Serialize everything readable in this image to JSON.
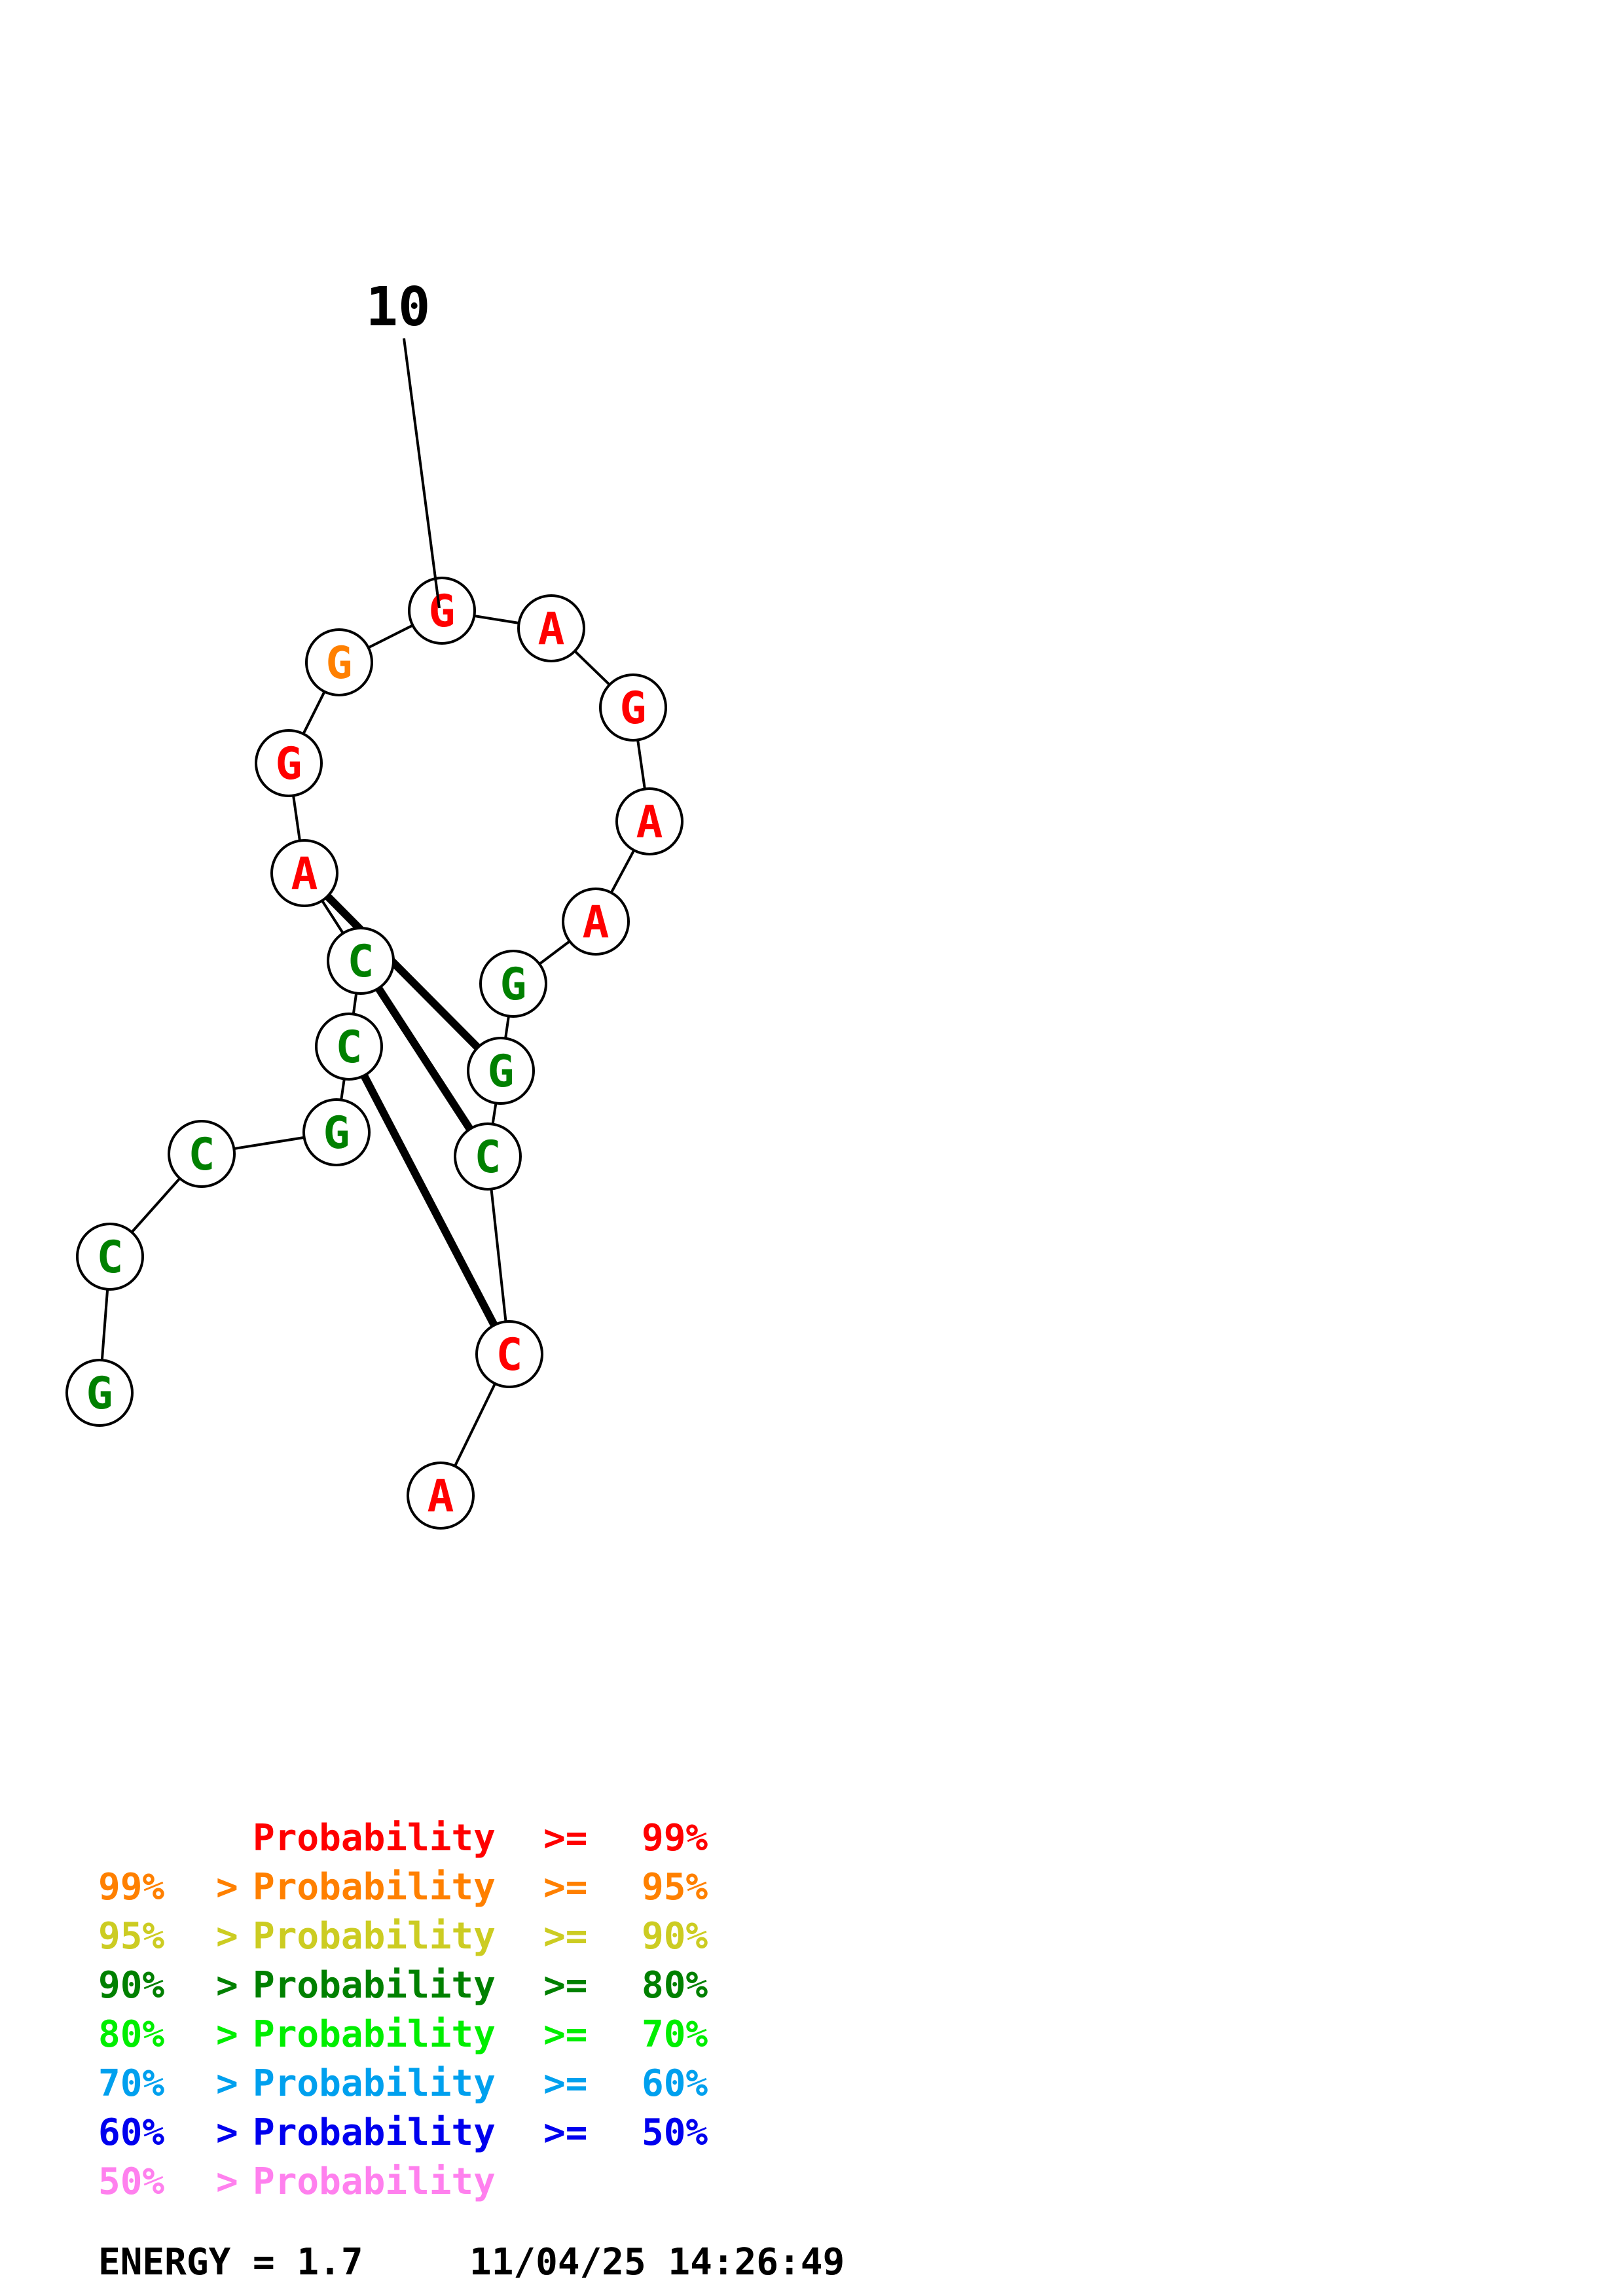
{
  "colors": {
    "red": "#ff0000",
    "orange": "#ff8000",
    "yellow": "#cccc22",
    "dark_green": "#008000",
    "bright_green": "#00ee00",
    "sky_blue": "#00a0ee",
    "blue": "#0000ee",
    "pink": "#ff80ee",
    "black": "#000000"
  },
  "structure": {
    "position_label": "10",
    "nucleotides": [
      {
        "letter": "G",
        "color": "dark_green"
      },
      {
        "letter": "C",
        "color": "dark_green"
      },
      {
        "letter": "C",
        "color": "dark_green"
      },
      {
        "letter": "G",
        "color": "dark_green"
      },
      {
        "letter": "C",
        "color": "dark_green"
      },
      {
        "letter": "C",
        "color": "dark_green"
      },
      {
        "letter": "A",
        "color": "red"
      },
      {
        "letter": "G",
        "color": "red"
      },
      {
        "letter": "G",
        "color": "orange"
      },
      {
        "letter": "G",
        "color": "red"
      },
      {
        "letter": "A",
        "color": "red"
      },
      {
        "letter": "G",
        "color": "red"
      },
      {
        "letter": "A",
        "color": "red"
      },
      {
        "letter": "A",
        "color": "red"
      },
      {
        "letter": "G",
        "color": "dark_green"
      },
      {
        "letter": "G",
        "color": "dark_green"
      },
      {
        "letter": "C",
        "color": "dark_green"
      },
      {
        "letter": "C",
        "color": "red"
      },
      {
        "letter": "A",
        "color": "red"
      }
    ],
    "base_pairs": [
      [
        6,
        15
      ],
      [
        5,
        16
      ],
      [
        4,
        17
      ]
    ]
  },
  "legend": [
    {
      "prefix": "",
      "gt": "",
      "label": "Probability",
      "ge": ">=",
      "pct": "99%",
      "color": "red"
    },
    {
      "prefix": "99%",
      "gt": ">",
      "label": "Probability",
      "ge": ">=",
      "pct": "95%",
      "color": "orange"
    },
    {
      "prefix": "95%",
      "gt": ">",
      "label": "Probability",
      "ge": ">=",
      "pct": "90%",
      "color": "yellow"
    },
    {
      "prefix": "90%",
      "gt": ">",
      "label": "Probability",
      "ge": ">=",
      "pct": "80%",
      "color": "dark_green"
    },
    {
      "prefix": "80%",
      "gt": ">",
      "label": "Probability",
      "ge": ">=",
      "pct": "70%",
      "color": "bright_green"
    },
    {
      "prefix": "70%",
      "gt": ">",
      "label": "Probability",
      "ge": ">=",
      "pct": "60%",
      "color": "sky_blue"
    },
    {
      "prefix": "60%",
      "gt": ">",
      "label": "Probability",
      "ge": ">=",
      "pct": "50%",
      "color": "blue"
    },
    {
      "prefix": "50%",
      "gt": ">",
      "label": "Probability",
      "ge": "",
      "pct": "",
      "color": "pink"
    }
  ],
  "footer": {
    "energy": "ENERGY = 1.7",
    "timestamp": "11/04/25 14:26:49"
  }
}
